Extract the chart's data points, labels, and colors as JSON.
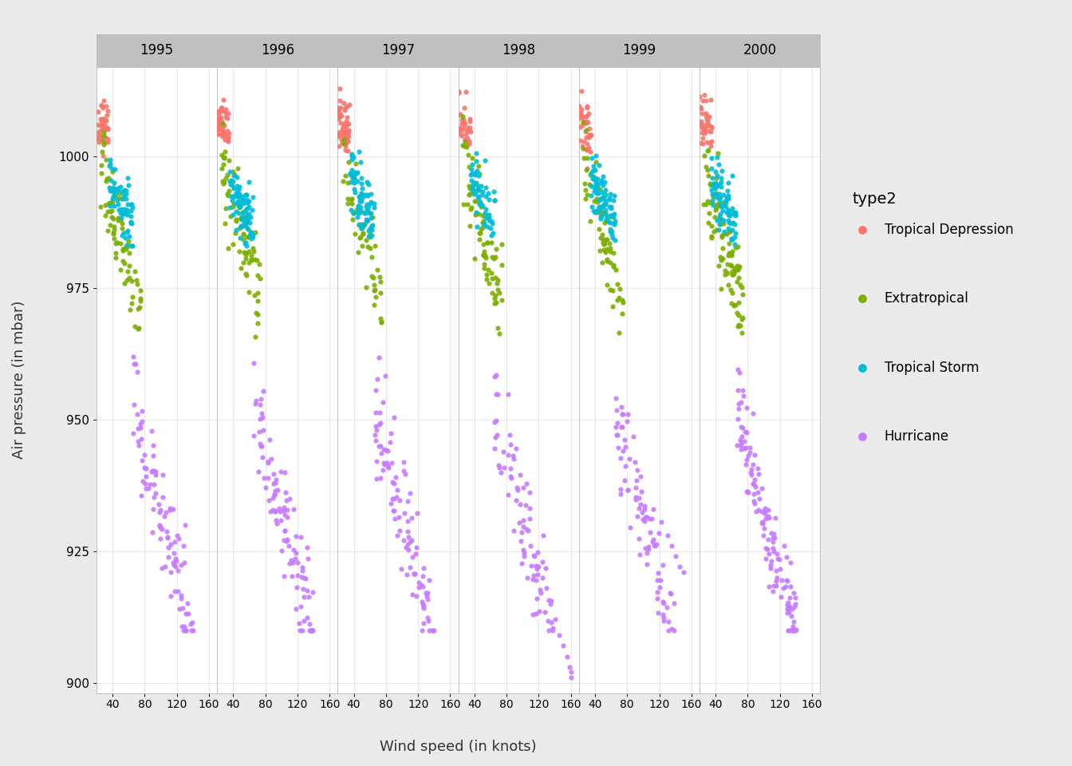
{
  "years": [
    1995,
    1996,
    1997,
    1998,
    1999,
    2000
  ],
  "type_colors": {
    "Tropical Depression": "#F8766D",
    "Extratropical": "#7CAE00",
    "Tropical Storm": "#00BCD8",
    "Hurricane": "#C77CFF"
  },
  "type_order": [
    "Tropical Depression",
    "Extratropical",
    "Tropical Storm",
    "Hurricane"
  ],
  "xlabel": "Wind speed (in knots)",
  "ylabel": "Air pressure (in mbar)",
  "legend_title": "type2",
  "ylim": [
    898,
    1017
  ],
  "yticks": [
    900,
    925,
    950,
    975,
    1000
  ],
  "xlim": [
    20,
    170
  ],
  "xticks": [
    40,
    80,
    120,
    160
  ],
  "panel_bg": "#FFFFFF",
  "fig_bg": "#EBEBEB",
  "strip_bg": "#C0C0C0",
  "grid_color": "#E8E8E8",
  "border_color": "#BEBEBE"
}
